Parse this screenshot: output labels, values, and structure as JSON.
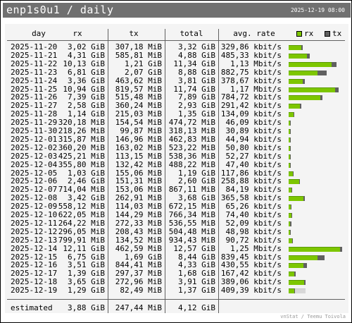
{
  "header": {
    "title": "enp1s0u1 / daily",
    "timestamp": "2025-12-19 08:00"
  },
  "columns": {
    "day": "day",
    "rx": "rx",
    "tx": "tx",
    "total": "total",
    "rate": "avg. rate"
  },
  "legend": {
    "rx": "rx",
    "tx": "tx"
  },
  "colors": {
    "rx": "#7dc600",
    "tx": "#606060",
    "header": "#707070",
    "background": "#f4f4f4"
  },
  "rows": [
    {
      "day": "2025-11-20",
      "rx": "3,02 GiB",
      "tx": "307,18 MiB",
      "total": "3,32 GiB",
      "rate": "329,86 kbit/s",
      "rx_frac": 0.229,
      "tx_frac": 0.027
    },
    {
      "day": "2025-11-21",
      "rx": "4,31 GiB",
      "tx": "585,81 MiB",
      "total": "4,88 GiB",
      "rate": "485,33 kbit/s",
      "rx_frac": 0.326,
      "tx_frac": 0.051
    },
    {
      "day": "2025-11-22",
      "rx": "10,13 GiB",
      "tx": "1,21 GiB",
      "total": "11,34 GiB",
      "rate": "1,13 Mbit/s",
      "rx_frac": 0.767,
      "tx_frac": 0.092
    },
    {
      "day": "2025-11-23",
      "rx": "6,81 GiB",
      "tx": "2,07 GiB",
      "total": "8,88 GiB",
      "rate": "882,75 kbit/s",
      "rx_frac": 0.515,
      "tx_frac": 0.157
    },
    {
      "day": "2025-11-24",
      "rx": "3,36 GiB",
      "tx": "463,62 MiB",
      "total": "3,81 GiB",
      "rate": "378,67 kbit/s",
      "rx_frac": 0.254,
      "tx_frac": 0.034
    },
    {
      "day": "2025-11-25",
      "rx": "10,94 GiB",
      "tx": "819,57 MiB",
      "total": "11,74 GiB",
      "rate": "1,17 Mbit/s",
      "rx_frac": 0.828,
      "tx_frac": 0.061
    },
    {
      "day": "2025-11-26",
      "rx": "7,39 GiB",
      "tx": "515,48 MiB",
      "total": "7,89 GiB",
      "rate": "784,72 kbit/s",
      "rx_frac": 0.559,
      "tx_frac": 0.038
    },
    {
      "day": "2025-11-27",
      "rx": "2,58 GiB",
      "tx": "360,24 MiB",
      "total": "2,93 GiB",
      "rate": "291,42 kbit/s",
      "rx_frac": 0.195,
      "tx_frac": 0.027
    },
    {
      "day": "2025-11-28",
      "rx": "1,14 GiB",
      "tx": "215,03 MiB",
      "total": "1,35 GiB",
      "rate": "134,09 kbit/s",
      "rx_frac": 0.086,
      "tx_frac": 0.016
    },
    {
      "day": "2025-11-29",
      "rx": "320,18 MiB",
      "tx": "154,54 MiB",
      "total": "474,72 MiB",
      "rate": "46,09 kbit/s",
      "rx_frac": 0.024,
      "tx_frac": 0.011
    },
    {
      "day": "2025-11-30",
      "rx": "218,26 MiB",
      "tx": "99,87 MiB",
      "total": "318,13 MiB",
      "rate": "30,89 kbit/s",
      "rx_frac": 0.016,
      "tx_frac": 0.007
    },
    {
      "day": "2025-12-01",
      "rx": "315,87 MiB",
      "tx": "146,96 MiB",
      "total": "462,83 MiB",
      "rate": "44,94 kbit/s",
      "rx_frac": 0.023,
      "tx_frac": 0.011
    },
    {
      "day": "2025-12-02",
      "rx": "360,20 MiB",
      "tx": "163,02 MiB",
      "total": "523,22 MiB",
      "rate": "50,80 kbit/s",
      "rx_frac": 0.027,
      "tx_frac": 0.012
    },
    {
      "day": "2025-12-03",
      "rx": "425,21 MiB",
      "tx": "113,15 MiB",
      "total": "538,36 MiB",
      "rate": "52,27 kbit/s",
      "rx_frac": 0.031,
      "tx_frac": 0.008
    },
    {
      "day": "2025-12-04",
      "rx": "355,80 MiB",
      "tx": "132,42 MiB",
      "total": "488,22 MiB",
      "rate": "47,40 kbit/s",
      "rx_frac": 0.026,
      "tx_frac": 0.01
    },
    {
      "day": "2025-12-05",
      "rx": "1,03 GiB",
      "tx": "155,06 MiB",
      "total": "1,19 GiB",
      "rate": "117,86 kbit/s",
      "rx_frac": 0.078,
      "tx_frac": 0.011
    },
    {
      "day": "2025-12-06",
      "rx": "2,46 GiB",
      "tx": "151,31 MiB",
      "total": "2,60 GiB",
      "rate": "258,88 kbit/s",
      "rx_frac": 0.186,
      "tx_frac": 0.011
    },
    {
      "day": "2025-12-07",
      "rx": "714,04 MiB",
      "tx": "153,06 MiB",
      "total": "867,11 MiB",
      "rate": "84,19 kbit/s",
      "rx_frac": 0.053,
      "tx_frac": 0.011
    },
    {
      "day": "2025-12-08",
      "rx": "3,42 GiB",
      "tx": "262,91 MiB",
      "total": "3,68 GiB",
      "rate": "365,58 kbit/s",
      "rx_frac": 0.259,
      "tx_frac": 0.019
    },
    {
      "day": "2025-12-09",
      "rx": "558,12 MiB",
      "tx": "114,03 MiB",
      "total": "672,15 MiB",
      "rate": "65,26 kbit/s",
      "rx_frac": 0.041,
      "tx_frac": 0.008
    },
    {
      "day": "2025-12-10",
      "rx": "622,05 MiB",
      "tx": "144,29 MiB",
      "total": "766,34 MiB",
      "rate": "74,40 kbit/s",
      "rx_frac": 0.046,
      "tx_frac": 0.011
    },
    {
      "day": "2025-12-11",
      "rx": "264,22 MiB",
      "tx": "272,33 MiB",
      "total": "536,55 MiB",
      "rate": "52,09 kbit/s",
      "rx_frac": 0.02,
      "tx_frac": 0.02
    },
    {
      "day": "2025-12-12",
      "rx": "296,05 MiB",
      "tx": "208,43 MiB",
      "total": "504,48 MiB",
      "rate": "48,98 kbit/s",
      "rx_frac": 0.022,
      "tx_frac": 0.015
    },
    {
      "day": "2025-12-13",
      "rx": "799,91 MiB",
      "tx": "134,52 MiB",
      "total": "934,43 MiB",
      "rate": "90,72 kbit/s",
      "rx_frac": 0.059,
      "tx_frac": 0.01
    },
    {
      "day": "2025-12-14",
      "rx": "12,11 GiB",
      "tx": "462,59 MiB",
      "total": "12,57 GiB",
      "rate": "1,25 Mbit/s",
      "rx_frac": 0.917,
      "tx_frac": 0.034
    },
    {
      "day": "2025-12-15",
      "rx": "6,75 GiB",
      "tx": "1,69 GiB",
      "total": "8,44 GiB",
      "rate": "839,45 kbit/s",
      "rx_frac": 0.511,
      "tx_frac": 0.128
    },
    {
      "day": "2025-12-16",
      "rx": "3,51 GiB",
      "tx": "844,41 MiB",
      "total": "4,33 GiB",
      "rate": "430,55 kbit/s",
      "rx_frac": 0.266,
      "tx_frac": 0.062
    },
    {
      "day": "2025-12-17",
      "rx": "1,39 GiB",
      "tx": "297,37 MiB",
      "total": "1,68 GiB",
      "rate": "167,42 kbit/s",
      "rx_frac": 0.105,
      "tx_frac": 0.022
    },
    {
      "day": "2025-12-18",
      "rx": "3,65 GiB",
      "tx": "272,96 MiB",
      "total": "3,91 GiB",
      "rate": "389,06 kbit/s",
      "rx_frac": 0.276,
      "tx_frac": 0.02
    },
    {
      "day": "2025-12-19",
      "rx": "1,29 GiB",
      "tx": "82,49 MiB",
      "total": "1,37 GiB",
      "rate": "409,39 kbit/s",
      "rx_frac": 0.098,
      "tx_frac": 0.006,
      "estimate_frac": 0.3
    }
  ],
  "estimated": {
    "label": "estimated",
    "rx": "3,88 GiB",
    "tx": "247,44 MiB",
    "total": "4,12 GiB"
  },
  "footer": "vnStat / Teemu Toivola"
}
